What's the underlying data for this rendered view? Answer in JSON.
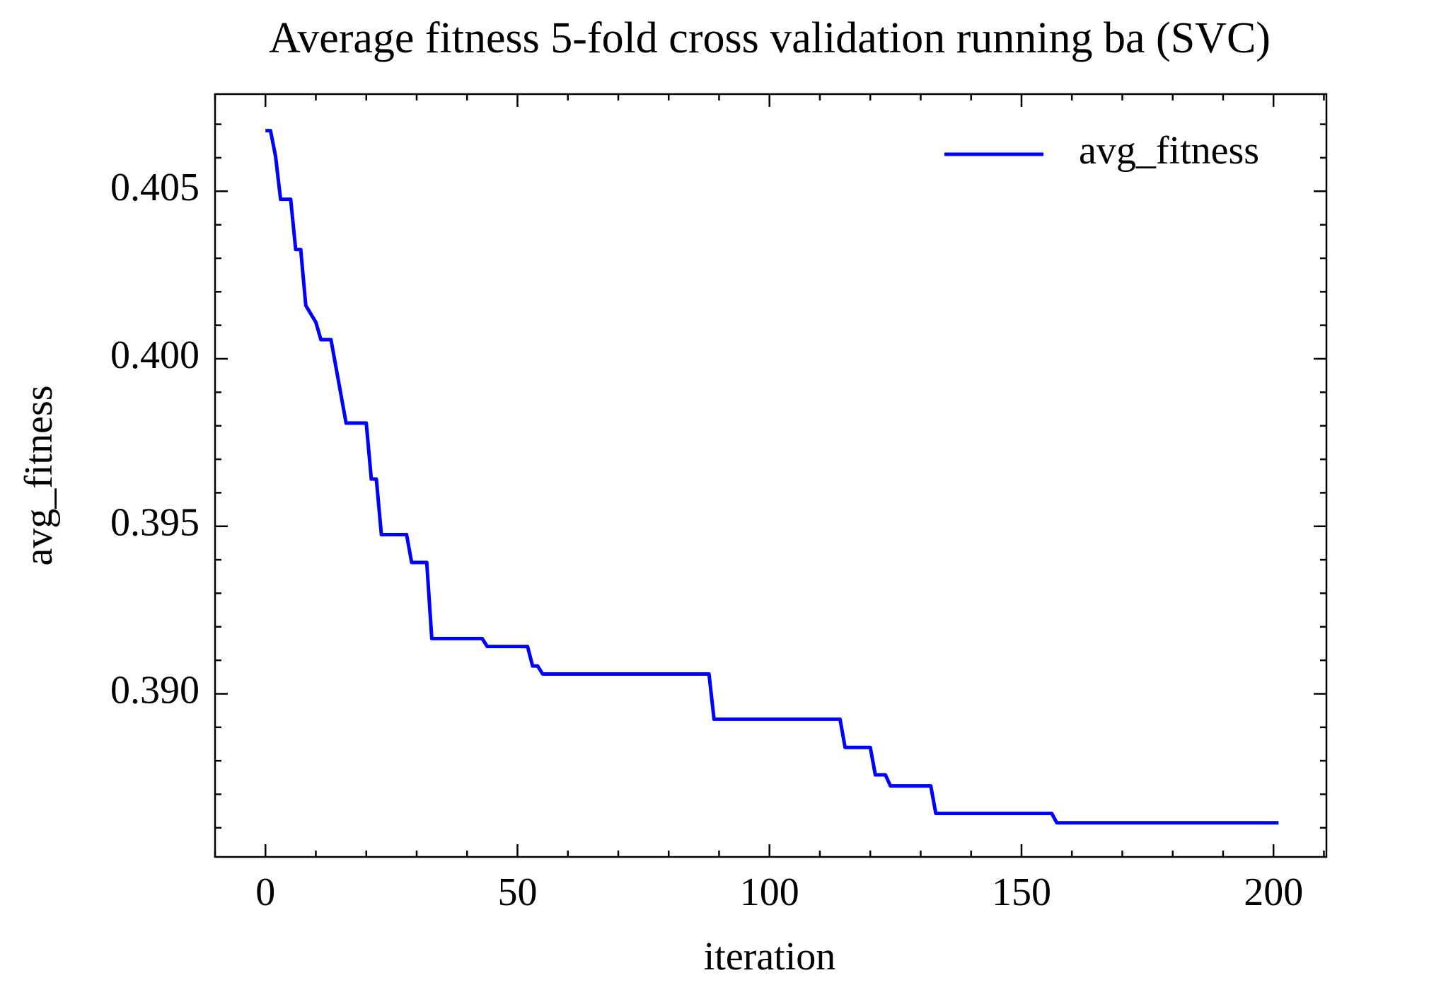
{
  "chart_data": {
    "type": "line",
    "title": "Average fitness 5-fold cross validation running ba (SVC)",
    "xlabel": "iteration",
    "ylabel": "avg_fitness",
    "x": [
      0,
      1,
      2,
      3,
      5,
      6,
      7,
      8,
      10,
      11,
      13,
      16,
      20,
      21,
      22,
      23,
      28,
      29,
      32,
      33,
      43,
      44,
      52,
      53,
      54,
      55,
      88,
      89,
      114,
      115,
      120,
      121,
      123,
      124,
      132,
      133,
      156,
      157,
      201
    ],
    "series": [
      {
        "name": "avg_fitness",
        "color": "#0000ff",
        "values": [
          0.40681,
          0.40681,
          0.40605,
          0.40476,
          0.40476,
          0.40326,
          0.40326,
          0.40159,
          0.40109,
          0.40057,
          0.40057,
          0.39808,
          0.39808,
          0.39641,
          0.39641,
          0.39475,
          0.39475,
          0.39392,
          0.39392,
          0.39165,
          0.39165,
          0.39141,
          0.39141,
          0.39083,
          0.39083,
          0.39059,
          0.39059,
          0.38924,
          0.38924,
          0.3884,
          0.3884,
          0.38758,
          0.38758,
          0.38725,
          0.38725,
          0.38643,
          0.38643,
          0.38615,
          0.38615
        ]
      }
    ],
    "xlim": [
      -10,
      210.5
    ],
    "ylim": [
      0.38513,
      0.4079
    ],
    "xticks": [
      0,
      50,
      100,
      150,
      200
    ],
    "yticks": [
      {
        "value": 0.39,
        "label": "0.390"
      },
      0.395,
      {
        "value": 0.4,
        "label": "0.400"
      },
      0.405
    ],
    "xticks_minor": [
      -10,
      10,
      20,
      30,
      40,
      60,
      70,
      80,
      90,
      110,
      120,
      130,
      140,
      160,
      170,
      180,
      190,
      210
    ],
    "yticks_minor": [
      0.386,
      0.387,
      0.388,
      0.389,
      0.391,
      0.392,
      0.393,
      0.394,
      0.396,
      0.397,
      0.398,
      0.399,
      0.401,
      0.402,
      0.403,
      0.404,
      0.406,
      0.407
    ],
    "legend": "upper right"
  }
}
